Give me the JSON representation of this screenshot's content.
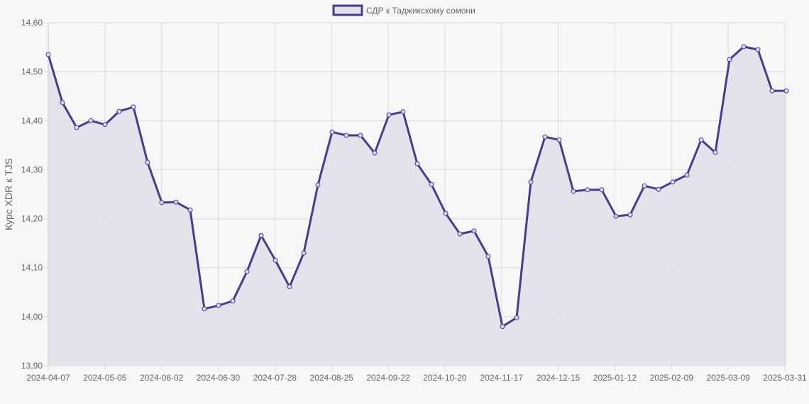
{
  "chart_data": {
    "type": "line",
    "title": "",
    "legend": {
      "position": "top",
      "entries": [
        "СДР к Таджикскому сомони"
      ]
    },
    "xlabel": "",
    "ylabel": "Курс XDR к TJS",
    "ylim": [
      13.9,
      14.6
    ],
    "y_ticks": [
      "13,90",
      "14,00",
      "14,10",
      "14,20",
      "14,30",
      "14,40",
      "14,50",
      "14,60"
    ],
    "x_tick_labels": [
      "2024-04-07",
      "2024-05-05",
      "2024-06-02",
      "2024-06-30",
      "2024-07-28",
      "2024-08-25",
      "2024-09-22",
      "2024-10-20",
      "2024-11-17",
      "2024-12-15",
      "2025-01-12",
      "2025-02-09",
      "2025-03-09",
      "2025-03-31"
    ],
    "grid": true,
    "fill": true,
    "colors": {
      "line": "#483d8b",
      "fill": "#e0dfea",
      "grid": "#d9d9d9",
      "background": "#f7f7f7"
    },
    "series": [
      {
        "name": "СДР к Таджикскому сомони",
        "x": [
          "2024-04-07",
          "2024-04-14",
          "2024-04-21",
          "2024-04-28",
          "2024-05-05",
          "2024-05-12",
          "2024-05-19",
          "2024-05-26",
          "2024-06-02",
          "2024-06-09",
          "2024-06-16",
          "2024-06-23",
          "2024-06-30",
          "2024-07-07",
          "2024-07-14",
          "2024-07-21",
          "2024-07-28",
          "2024-08-04",
          "2024-08-11",
          "2024-08-18",
          "2024-08-25",
          "2024-09-01",
          "2024-09-08",
          "2024-09-15",
          "2024-09-22",
          "2024-09-29",
          "2024-10-06",
          "2024-10-13",
          "2024-10-20",
          "2024-10-27",
          "2024-11-03",
          "2024-11-10",
          "2024-11-17",
          "2024-11-24",
          "2024-12-01",
          "2024-12-08",
          "2024-12-15",
          "2024-12-22",
          "2024-12-29",
          "2025-01-05",
          "2025-01-12",
          "2025-01-19",
          "2025-01-26",
          "2025-02-02",
          "2025-02-09",
          "2025-02-16",
          "2025-02-23",
          "2025-03-02",
          "2025-03-09",
          "2025-03-16",
          "2025-03-23",
          "2025-03-30",
          "2025-03-31"
        ],
        "values": [
          14.535,
          14.437,
          14.386,
          14.4,
          14.392,
          14.419,
          14.428,
          14.315,
          14.233,
          14.234,
          14.218,
          14.016,
          14.023,
          14.032,
          14.092,
          14.166,
          14.115,
          14.061,
          14.13,
          14.269,
          14.377,
          14.37,
          14.37,
          14.334,
          14.412,
          14.418,
          14.312,
          14.27,
          14.211,
          14.169,
          14.175,
          14.123,
          13.98,
          13.998,
          14.275,
          14.367,
          14.361,
          14.256,
          14.259,
          14.259,
          14.205,
          14.208,
          14.267,
          14.26,
          14.275,
          14.289,
          14.361,
          14.335,
          14.525,
          14.551,
          14.545,
          14.461,
          14.461
        ]
      }
    ]
  }
}
